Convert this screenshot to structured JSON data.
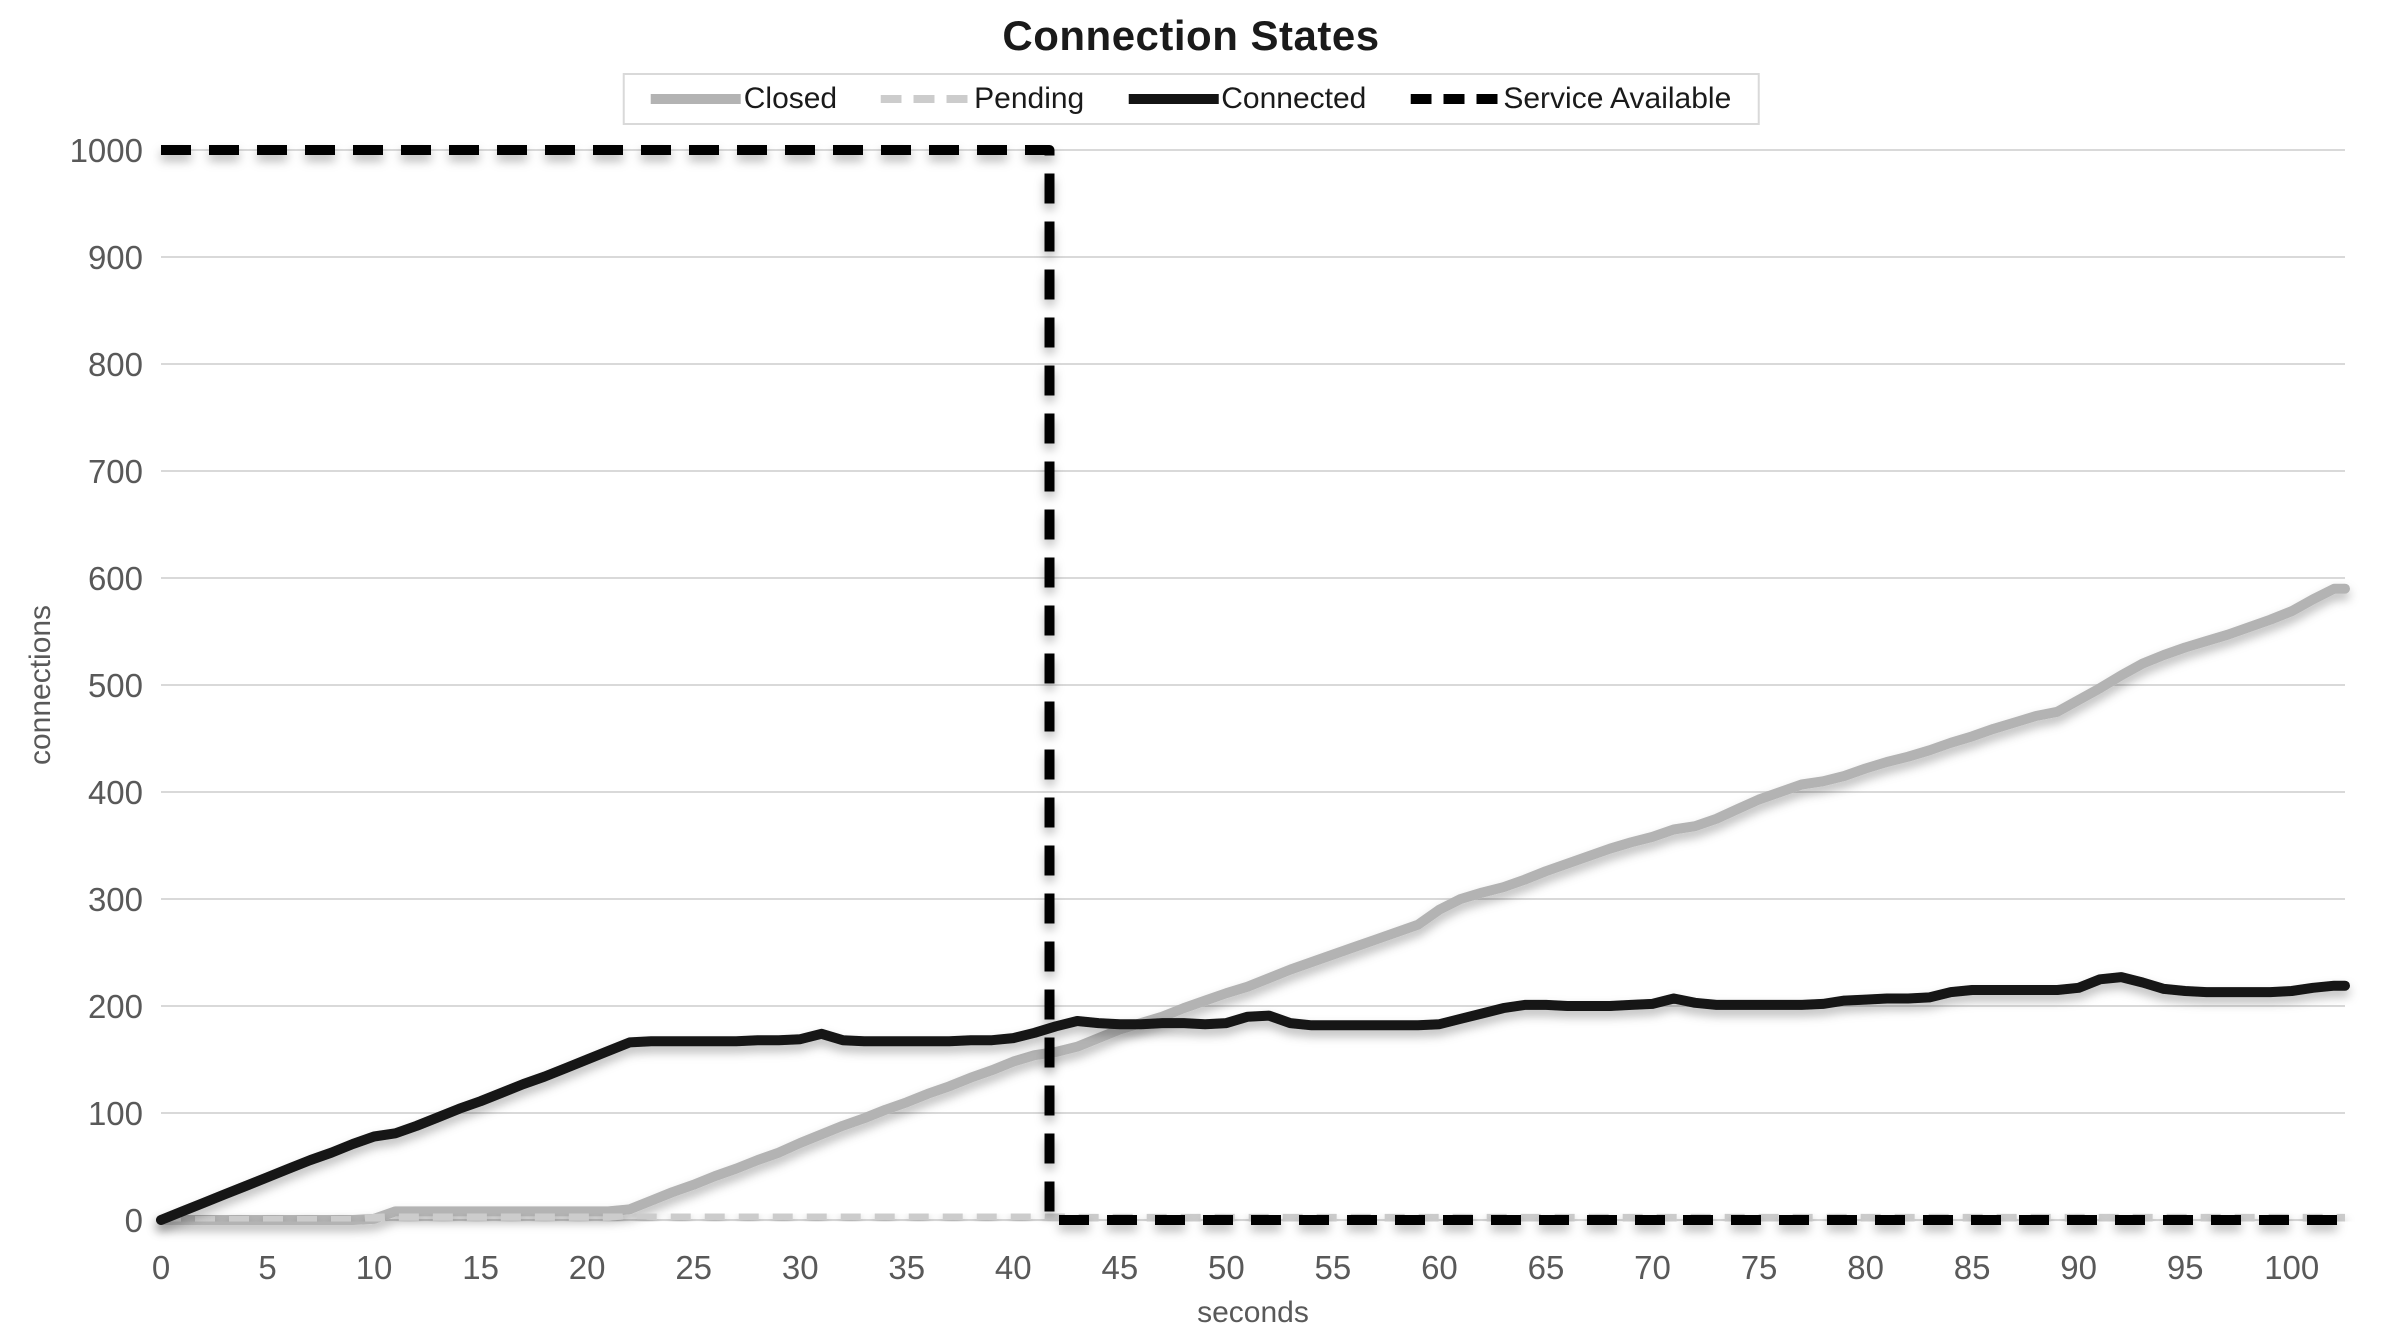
{
  "chart_data": {
    "type": "line",
    "title": "Connection States",
    "xlabel": "seconds",
    "ylabel": "connections",
    "xlim": [
      0,
      102.5
    ],
    "ylim": [
      0,
      1000
    ],
    "x_ticks": [
      0,
      5,
      10,
      15,
      20,
      25,
      30,
      35,
      40,
      45,
      50,
      55,
      60,
      65,
      70,
      75,
      80,
      85,
      90,
      95,
      100
    ],
    "y_ticks": [
      0,
      100,
      200,
      300,
      400,
      500,
      600,
      700,
      800,
      900,
      1000
    ],
    "grid": "horizontal",
    "legend_position": "top-center",
    "colors": {
      "background": "#ffffff",
      "gridline": "#d9d9d9",
      "tick_label": "#595959",
      "axis_title": "#595959",
      "title_text": "#1a1a1a",
      "legend_border": "#d9d9d9",
      "legend_text": "#1a1a1a"
    },
    "series": [
      {
        "name": "Closed",
        "color": "#b3b3b3",
        "line_style": "solid",
        "stroke_width": 10,
        "x_step": 1,
        "values": [
          0,
          0,
          0,
          0,
          0,
          0,
          0,
          0,
          0,
          0,
          1,
          8,
          8,
          8,
          8,
          8,
          8,
          8,
          8,
          8,
          8,
          8,
          10,
          18,
          26,
          33,
          41,
          48,
          56,
          63,
          72,
          80,
          88,
          95,
          103,
          110,
          118,
          125,
          133,
          140,
          148,
          154,
          157,
          162,
          170,
          178,
          184,
          190,
          198,
          205,
          212,
          218,
          226,
          234,
          241,
          248,
          255,
          262,
          269,
          276,
          290,
          300,
          306,
          311,
          318,
          326,
          333,
          340,
          347,
          353,
          358,
          365,
          368,
          375,
          384,
          393,
          400,
          407,
          410,
          415,
          422,
          428,
          433,
          439,
          446,
          452,
          459,
          465,
          471,
          475,
          486,
          497,
          509,
          520,
          528,
          535,
          541,
          547,
          554,
          561,
          569,
          580,
          590
        ]
      },
      {
        "name": "Pending",
        "color": "#cccccc",
        "line_style": "dashed",
        "dash_pattern": [
          20,
          14
        ],
        "stroke_width": 8,
        "x_step": 1,
        "values": [
          0,
          0,
          0,
          0,
          0,
          0,
          0,
          0,
          0,
          0,
          2,
          3,
          3,
          3,
          3,
          3,
          3,
          3,
          3,
          3,
          3,
          3,
          5,
          4,
          4,
          4,
          4,
          4,
          4,
          4,
          4,
          4,
          4,
          4,
          4,
          4,
          4,
          4,
          4,
          4,
          4,
          4,
          3,
          2,
          2,
          2,
          2,
          2,
          2,
          2,
          2,
          2,
          2,
          2,
          2,
          2,
          2,
          2,
          2,
          2,
          2,
          2,
          2,
          2,
          2,
          2,
          2,
          2,
          2,
          2,
          2,
          2,
          2,
          2,
          2,
          2,
          2,
          2,
          2,
          2,
          2,
          2,
          2,
          2,
          2,
          2,
          2,
          2,
          2,
          2,
          2,
          2,
          2,
          2,
          2,
          2,
          2,
          2,
          2,
          2,
          2,
          2,
          2
        ]
      },
      {
        "name": "Connected",
        "color": "#141414",
        "line_style": "solid",
        "stroke_width": 10,
        "x_step": 1,
        "values": [
          0,
          8,
          16,
          24,
          32,
          40,
          48,
          56,
          63,
          71,
          78,
          81,
          88,
          96,
          104,
          111,
          119,
          127,
          134,
          142,
          150,
          158,
          166,
          167,
          167,
          167,
          167,
          167,
          168,
          168,
          169,
          174,
          168,
          167,
          167,
          167,
          167,
          167,
          168,
          168,
          170,
          175,
          181,
          186,
          184,
          183,
          183,
          184,
          184,
          183,
          184,
          190,
          191,
          184,
          182,
          182,
          182,
          182,
          182,
          182,
          183,
          188,
          193,
          198,
          201,
          201,
          200,
          200,
          200,
          201,
          202,
          207,
          203,
          201,
          201,
          201,
          201,
          201,
          202,
          205,
          206,
          207,
          207,
          208,
          213,
          215,
          215,
          215,
          215,
          215,
          217,
          225,
          227,
          222,
          216,
          214,
          213,
          213,
          213,
          213,
          214,
          217,
          219
        ]
      },
      {
        "name": "Service Available",
        "color": "#000000",
        "line_style": "dashed",
        "dash_pattern": [
          30,
          18
        ],
        "stroke_width": 10,
        "points": [
          [
            0,
            1000
          ],
          [
            41.7,
            1000
          ],
          [
            41.7,
            0
          ],
          [
            102.5,
            0
          ]
        ]
      }
    ]
  }
}
